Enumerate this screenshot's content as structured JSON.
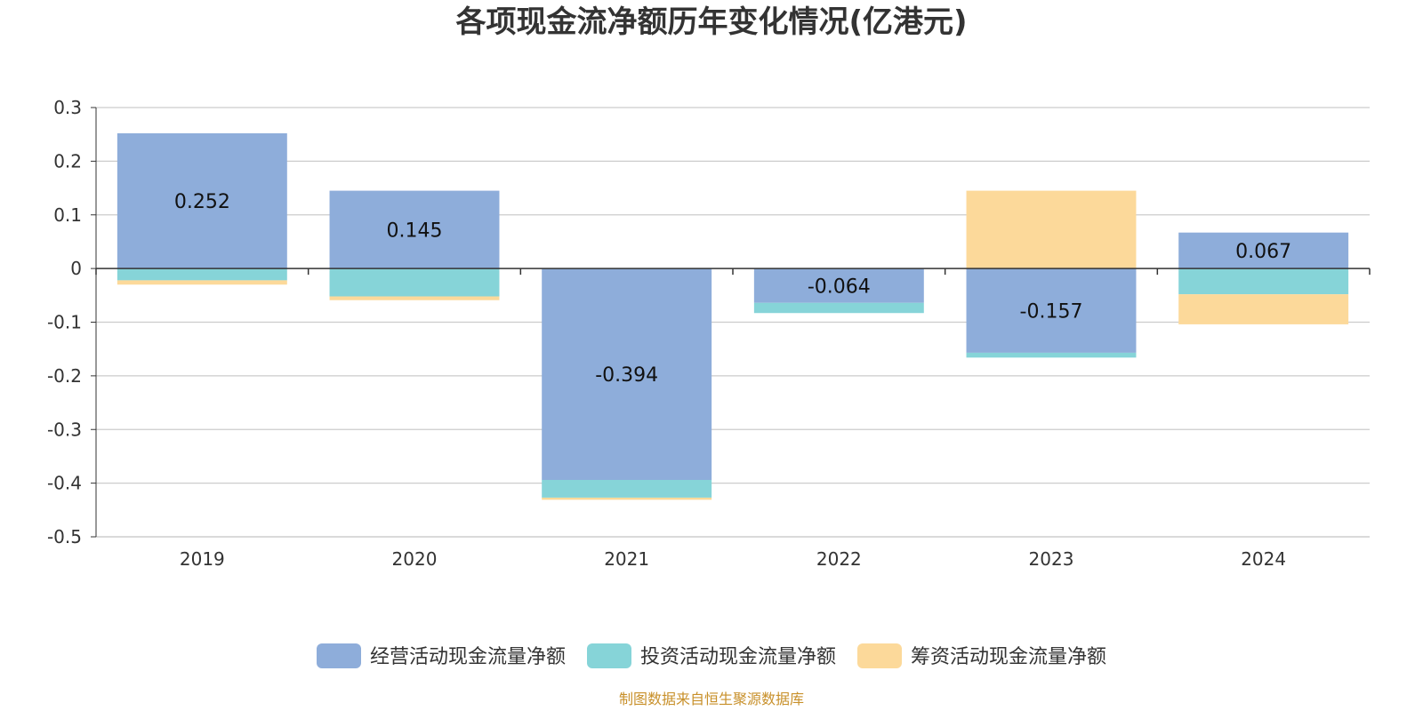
{
  "chart_data": {
    "type": "bar",
    "stacked": true,
    "title": "各项现金流净额历年变化情况(亿港元)",
    "categories": [
      "2019",
      "2020",
      "2021",
      "2022",
      "2023",
      "2024"
    ],
    "series": [
      {
        "name": "经营活动现金流量净额",
        "color": "#8eadda",
        "values": [
          0.252,
          0.145,
          -0.394,
          -0.064,
          -0.157,
          0.067
        ],
        "labels": [
          "0.252",
          "0.145",
          "-0.394",
          "-0.064",
          "-0.157",
          "0.067"
        ]
      },
      {
        "name": "投资活动现金流量净额",
        "color": "#86d4d8",
        "values": [
          -0.022,
          -0.052,
          -0.033,
          -0.019,
          -0.009,
          -0.048
        ]
      },
      {
        "name": "筹资活动现金流量净额",
        "color": "#fcd99a",
        "values": [
          -0.008,
          -0.007,
          -0.004,
          0.0,
          0.145,
          -0.056
        ]
      }
    ],
    "ylim": [
      -0.5,
      0.3
    ],
    "yticks": [
      "0.3",
      "0.2",
      "0.1",
      "0",
      "-0.1",
      "-0.2",
      "-0.3",
      "-0.4",
      "-0.5"
    ],
    "ytick_values": [
      0.3,
      0.2,
      0.1,
      0,
      -0.1,
      -0.2,
      -0.3,
      -0.4,
      -0.5
    ],
    "grid": true,
    "legend_position": "bottom-center",
    "source": "制图数据来自恒生聚源数据库"
  }
}
